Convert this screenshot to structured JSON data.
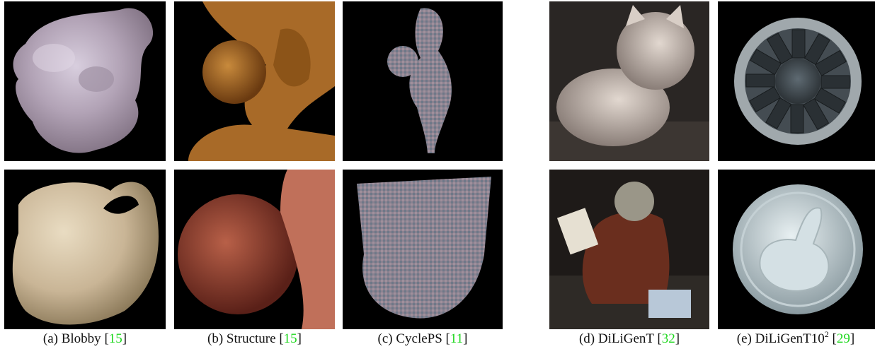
{
  "captions": [
    {
      "label": "(a) Blobby ",
      "ref_open": "[",
      "ref": "15",
      "ref_close": "]"
    },
    {
      "label": "(b) Structure ",
      "ref_open": "[",
      "ref": "15",
      "ref_close": "]"
    },
    {
      "label": "(c) CyclePS ",
      "ref_open": "[",
      "ref": "11",
      "ref_close": "]"
    },
    {
      "label": "(d) DiLiGenT ",
      "ref_open": "[",
      "ref": "32",
      "ref_close": "]"
    },
    {
      "label": "(e) DiLiGenT10",
      "sup": "2",
      "ref_open": " [",
      "ref": "29",
      "ref_close": "]"
    }
  ],
  "colors": {
    "reference_link": "#1fd81f",
    "background": "#000000"
  }
}
